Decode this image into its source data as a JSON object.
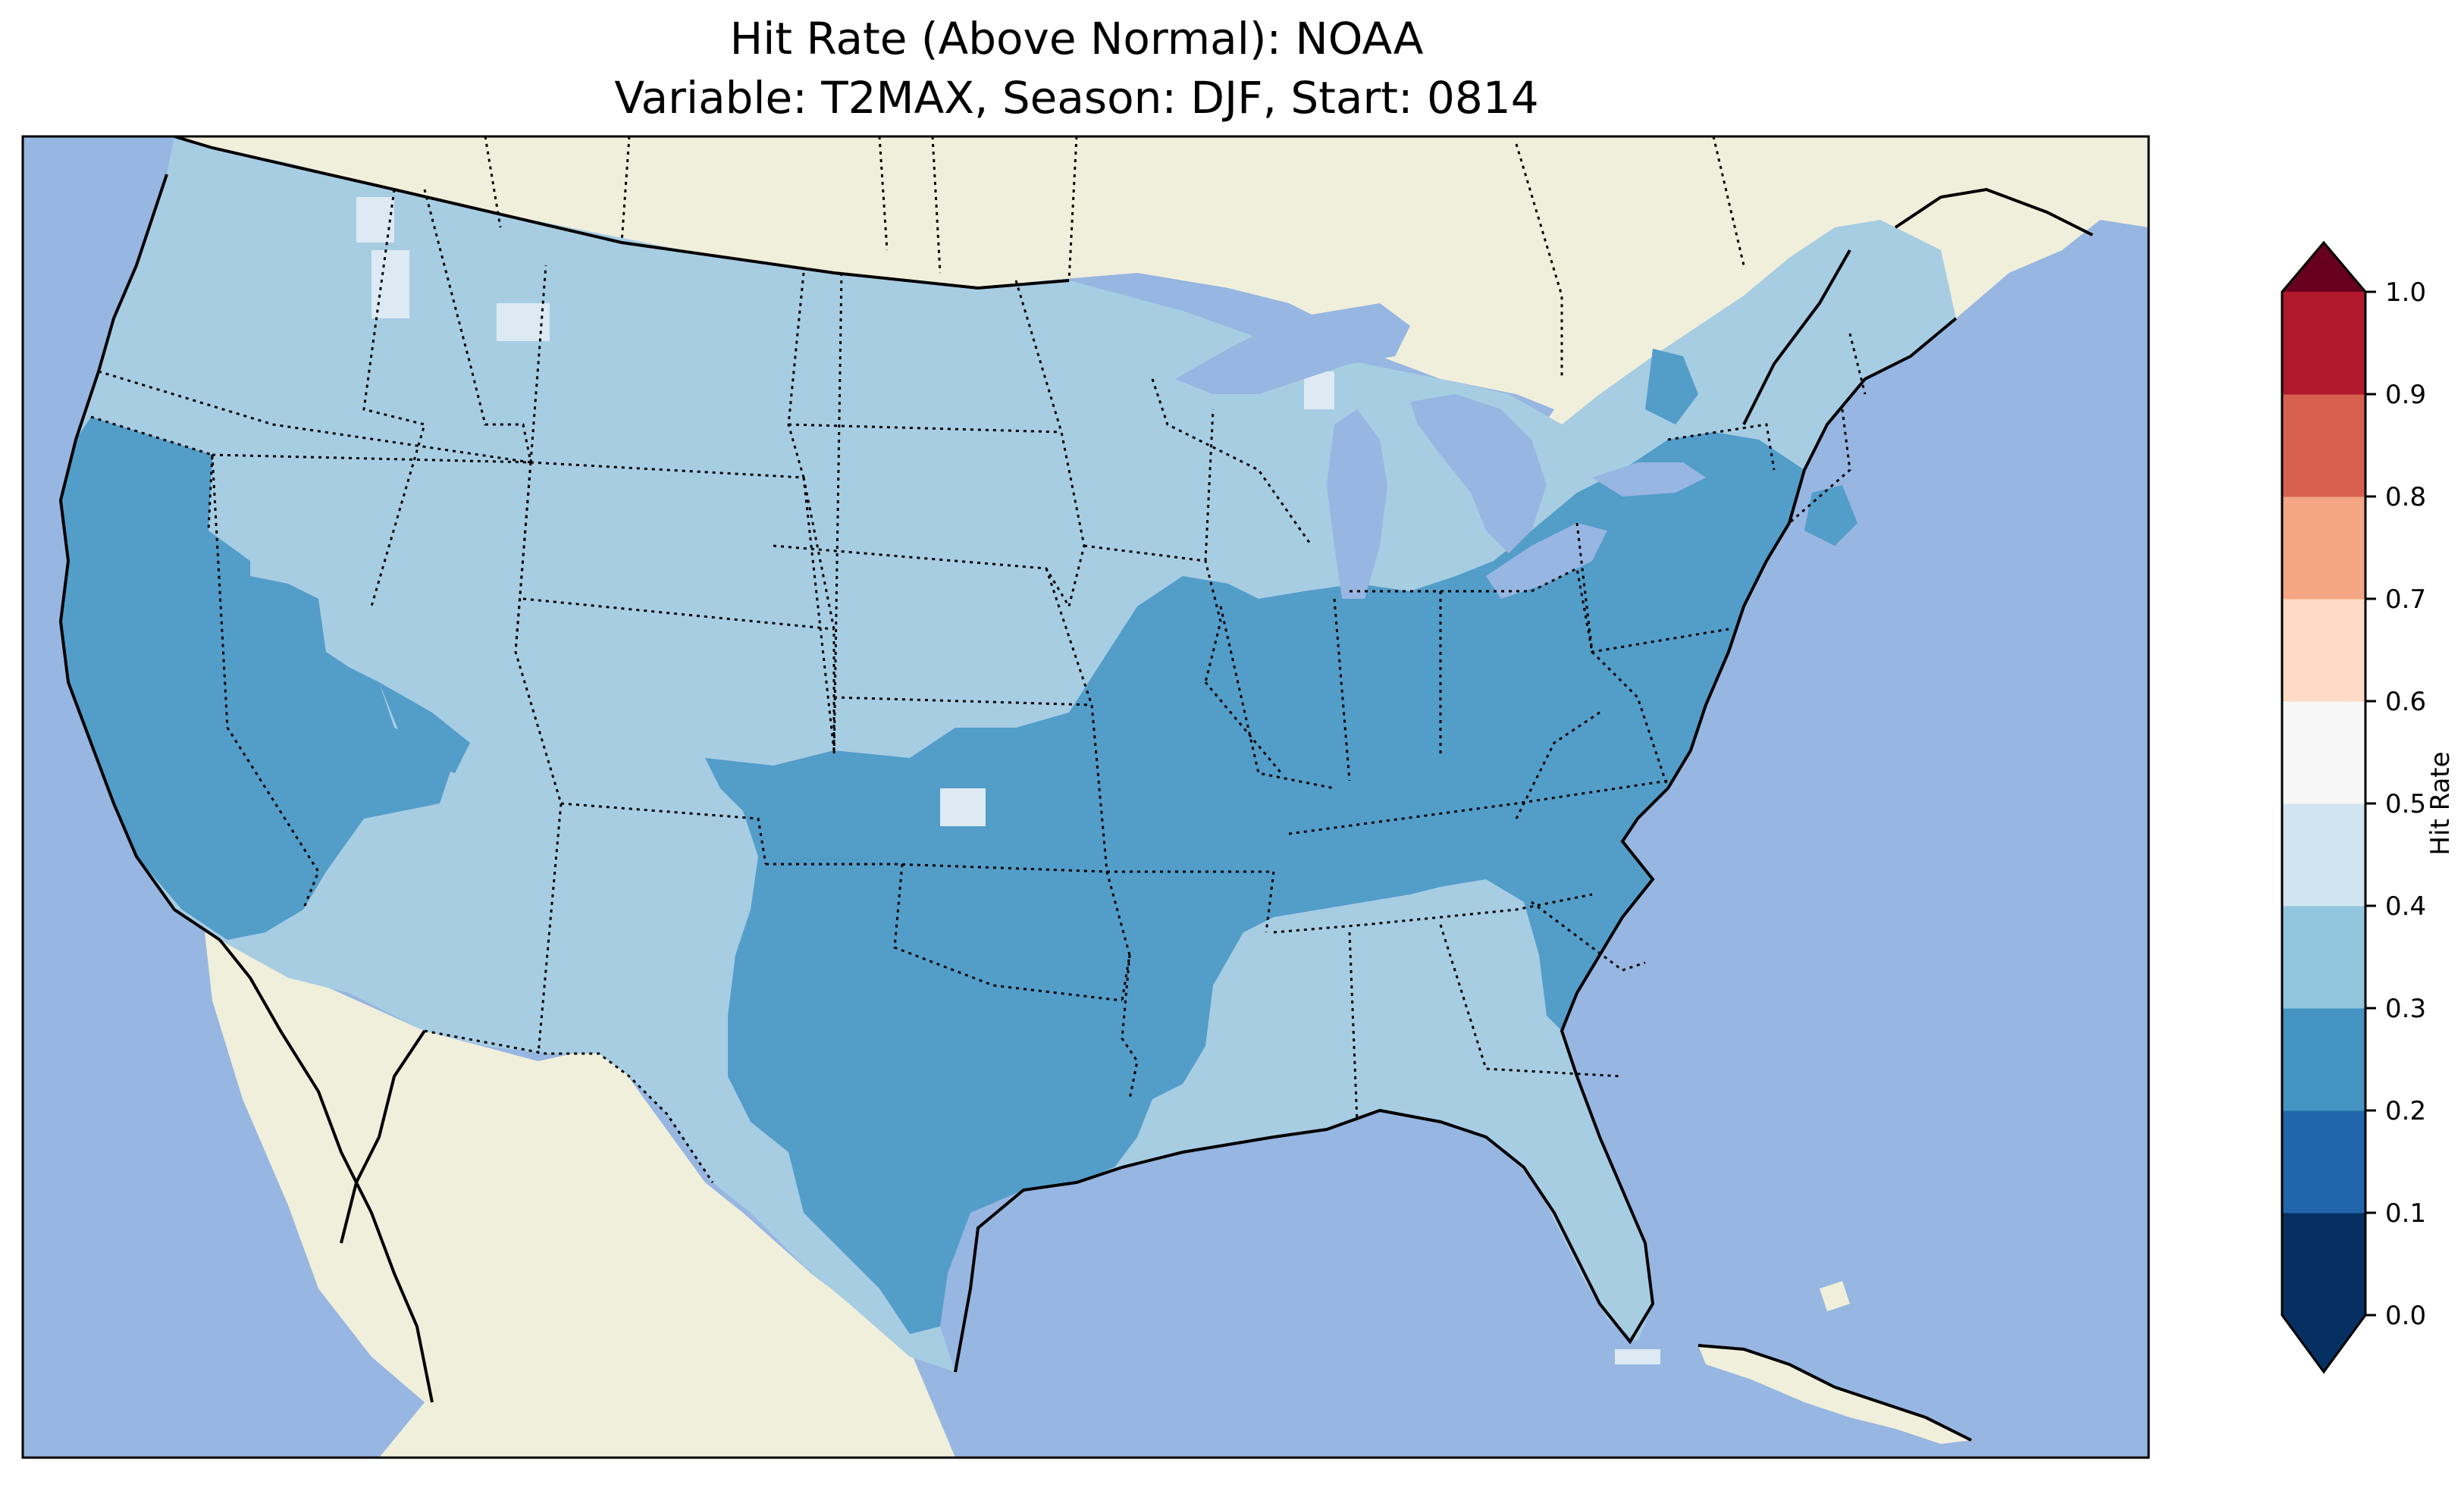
{
  "title_line1": "Hit Rate (Above Normal): NOAA",
  "title_line2": "Variable: T2MAX, Season: DJF, Start: 0814",
  "colorbar": {
    "label": "Hit Rate",
    "ticks": [
      "0.0",
      "0.1",
      "0.2",
      "0.3",
      "0.4",
      "0.5",
      "0.6",
      "0.7",
      "0.8",
      "0.9",
      "1.0"
    ],
    "colors": [
      "#053061",
      "#2166ac",
      "#4393c3",
      "#92c5de",
      "#d1e5f0",
      "#f7f7f7",
      "#fddbc7",
      "#f4a582",
      "#d6604d",
      "#b2182b",
      "#67001f"
    ],
    "under_color": "#053061",
    "over_color": "#67001f"
  },
  "map_colors": {
    "ocean": "#97b6e1",
    "land": "#efefdb",
    "bin_0_2_0_3": "#539dc9",
    "bin_0_3_0_4": "#a7cde3",
    "bin_0_4_0_5": "#ddeaf3"
  }
}
